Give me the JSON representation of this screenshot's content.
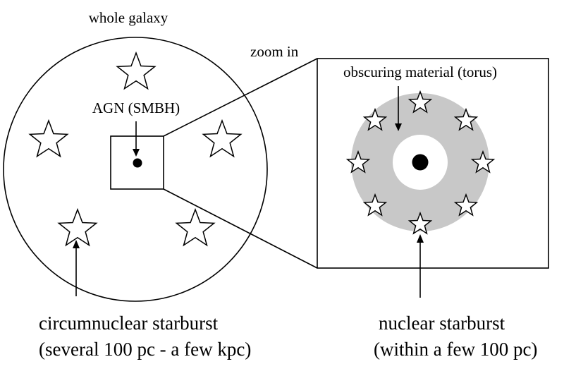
{
  "labels": {
    "whole_galaxy": "whole galaxy",
    "zoom_in": "zoom in",
    "agn": "AGN (SMBH)",
    "obscuring": "obscuring material (torus)",
    "circumnuclear_line1": "circumnuclear starburst",
    "circumnuclear_line2": "(several 100 pc - a few kpc)",
    "nuclear_line1": "nuclear starburst",
    "nuclear_line2": "(within a few 100 pc)"
  },
  "colors": {
    "torus": "#c8c8c8",
    "stroke": "#000000",
    "background": "#ffffff"
  },
  "icons": {
    "galaxy_star": "five-point-star-outline",
    "nuclear_star": "five-point-star-outline",
    "black_hole": "filled-black-dot"
  }
}
